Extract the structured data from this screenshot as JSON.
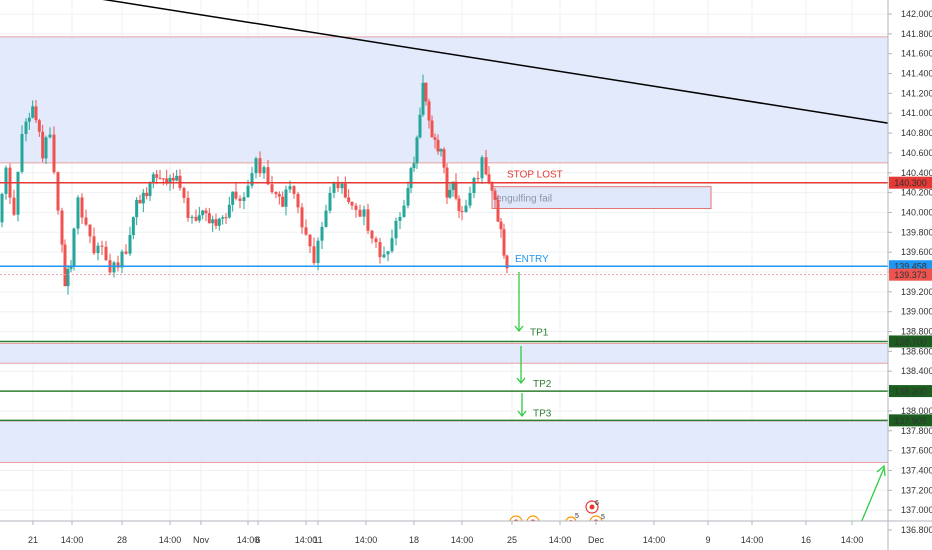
{
  "chart_data": {
    "type": "candlestick",
    "ylim": [
      136.7,
      142.1
    ],
    "y_ticks": [
      "142.000",
      "141.800",
      "141.600",
      "141.400",
      "141.200",
      "141.000",
      "140.800",
      "140.600",
      "140.400",
      "140.200",
      "140.000",
      "139.800",
      "139.600",
      "139.400",
      "139.200",
      "139.000",
      "138.800",
      "138.600",
      "138.400",
      "138.200",
      "138.000",
      "137.800",
      "137.600",
      "137.400",
      "137.200",
      "137.000",
      "136.800"
    ],
    "x_ticks": [
      "21",
      "14:00",
      "28",
      "14:00",
      "Nov",
      "14:00",
      "6",
      "14:00",
      "11",
      "14:00",
      "18",
      "14:00",
      "25",
      "14:00",
      "Dec",
      "14:00",
      "9",
      "14:00",
      "16",
      "14:00"
    ],
    "zones": [
      {
        "top": 141.77,
        "bottom": 140.5
      },
      {
        "top": 138.68,
        "bottom": 138.48
      },
      {
        "top": 137.9,
        "bottom": 137.48
      }
    ],
    "levels": [
      {
        "label": "STOP LOST",
        "value": 140.3,
        "price_tag": "140.300",
        "color": "#e53935"
      },
      {
        "label": "ENTRY",
        "value": 139.458,
        "price_tag": "139.458",
        "color": "#2196f3"
      },
      {
        "label": "TP1",
        "value": 138.7,
        "price_tag": "138.700",
        "color": "#2e7d32"
      },
      {
        "label": "TP2",
        "value": 138.2,
        "price_tag": "138.200",
        "color": "#2e7d32"
      },
      {
        "label": "TP3",
        "value": 137.905,
        "price_tag": "137.905",
        "color": "#2e7d32"
      }
    ],
    "current_price": {
      "value": 139.373,
      "price_tag": "139.373",
      "color": "#ef5350"
    },
    "annotation": {
      "text": "engulfing fail",
      "top": 140.26,
      "bottom": 140.04
    },
    "trendline": {
      "from": 142.2,
      "to": 140.9
    },
    "events": [
      {
        "count": "5"
      },
      {
        "count": "6"
      },
      {
        "count": "5"
      }
    ],
    "colors": {
      "up": "#26a69a",
      "down": "#ef5350",
      "zone": "#dfe8fb",
      "grid": "#eef0f3"
    }
  }
}
